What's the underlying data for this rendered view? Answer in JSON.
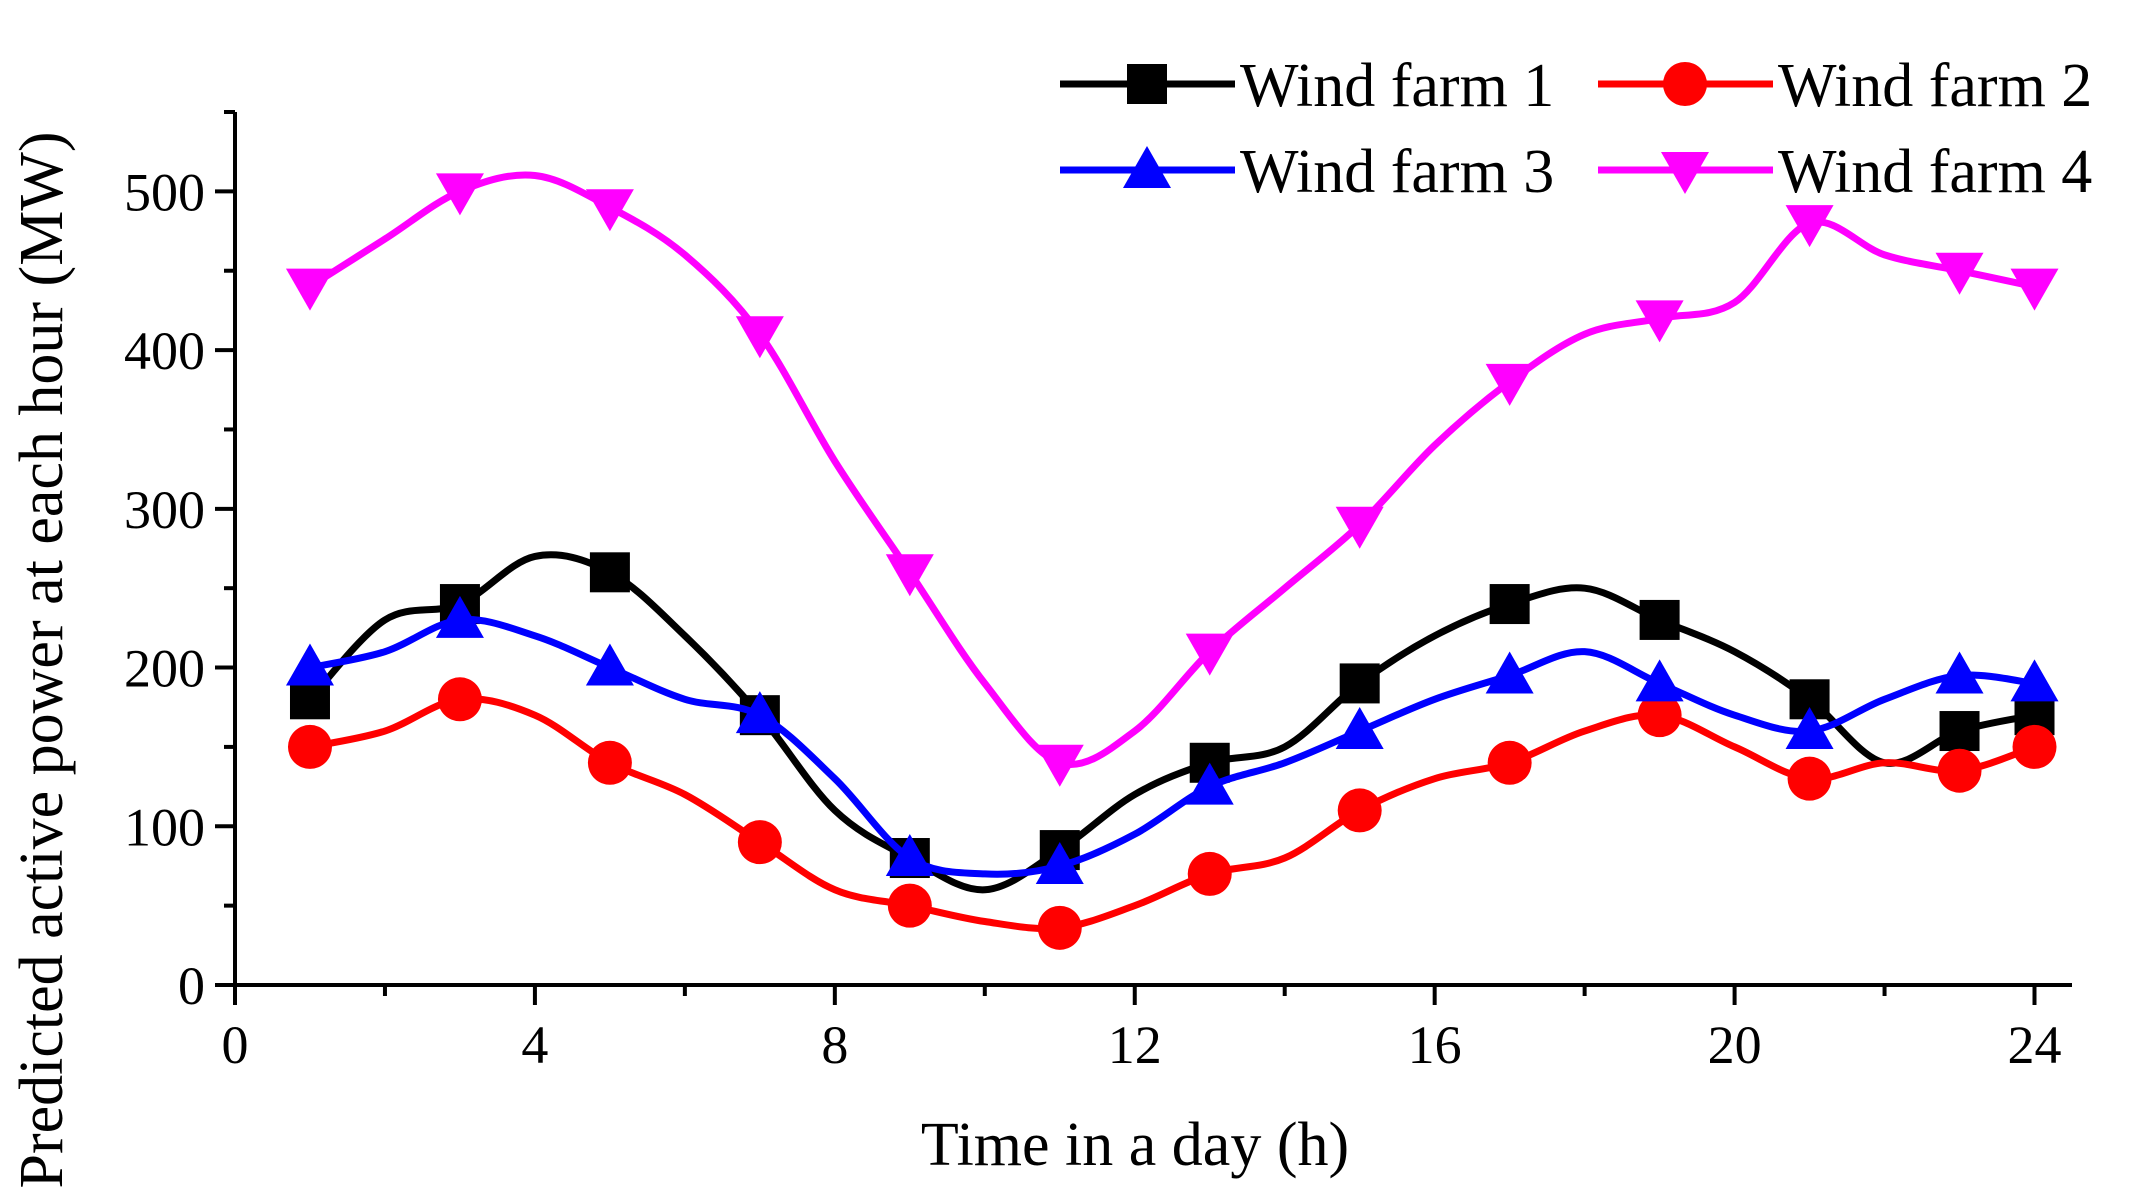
{
  "chart_data": {
    "type": "line",
    "title": "",
    "xlabel": "Time in a day (h)",
    "ylabel": "Predicted active power at each hour (MW)",
    "xlim": [
      0,
      24.5
    ],
    "ylim": [
      0,
      550
    ],
    "x_ticks": [
      0,
      4,
      8,
      12,
      16,
      20,
      24
    ],
    "y_ticks": [
      0,
      100,
      200,
      300,
      400,
      500
    ],
    "x_tick_labels": [
      "0",
      "4",
      "8",
      "12",
      "16",
      "20",
      "24"
    ],
    "y_tick_labels": [
      "0",
      "100",
      "200",
      "300",
      "400",
      "500"
    ],
    "grid": false,
    "legend_position": "top-right",
    "x": [
      1,
      2,
      3,
      4,
      5,
      6,
      7,
      8,
      9,
      10,
      11,
      12,
      13,
      14,
      15,
      16,
      17,
      18,
      19,
      20,
      21,
      22,
      23,
      24
    ],
    "series": [
      {
        "name": "Wind farm 1",
        "color": "#000000",
        "marker": "square",
        "values": [
          180,
          230,
          240,
          270,
          260,
          220,
          170,
          110,
          80,
          60,
          85,
          120,
          140,
          150,
          190,
          220,
          240,
          250,
          230,
          210,
          180,
          140,
          160,
          170
        ]
      },
      {
        "name": "Wind farm 2",
        "color": "#ff0000",
        "marker": "circle",
        "values": [
          150,
          160,
          180,
          170,
          140,
          120,
          90,
          60,
          50,
          40,
          36,
          50,
          70,
          80,
          110,
          130,
          140,
          160,
          170,
          150,
          130,
          140,
          135,
          150
        ]
      },
      {
        "name": "Wind farm 3",
        "color": "#0000ff",
        "marker": "triangle-up",
        "values": [
          200,
          210,
          230,
          220,
          200,
          180,
          170,
          130,
          80,
          70,
          75,
          95,
          125,
          140,
          160,
          180,
          195,
          210,
          190,
          170,
          160,
          180,
          195,
          190
        ]
      },
      {
        "name": "Wind farm 4",
        "color": "#ff00ff",
        "marker": "triangle-down",
        "values": [
          440,
          470,
          500,
          510,
          490,
          460,
          410,
          330,
          260,
          190,
          140,
          160,
          210,
          250,
          290,
          340,
          380,
          410,
          420,
          430,
          480,
          460,
          450,
          440
        ]
      }
    ]
  }
}
